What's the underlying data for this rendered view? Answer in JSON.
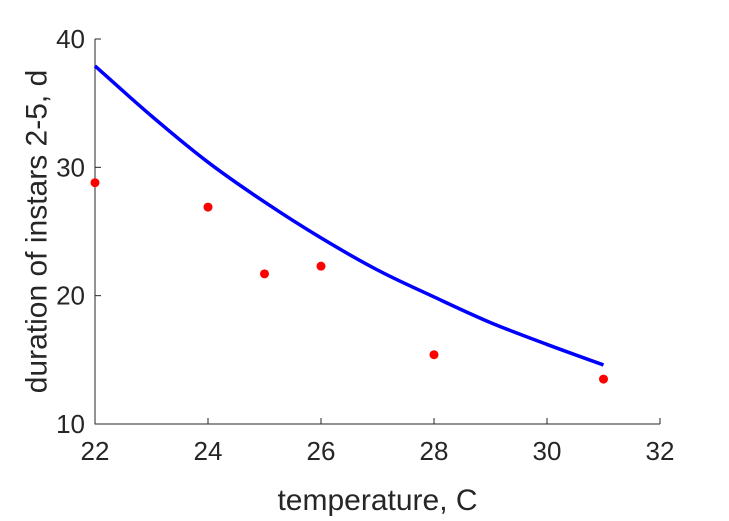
{
  "chart_data": {
    "type": "scatter",
    "title": "",
    "xlabel": "temperature, C",
    "ylabel": "duration of instars 2-5, d",
    "xlim": [
      22,
      32
    ],
    "ylim": [
      10,
      40
    ],
    "xticks": [
      22,
      24,
      26,
      28,
      30,
      32
    ],
    "yticks": [
      10,
      20,
      30,
      40
    ],
    "xtick_labels": [
      "22",
      "24",
      "26",
      "28",
      "30",
      "32"
    ],
    "ytick_labels": [
      "10",
      "20",
      "30",
      "40"
    ],
    "grid": false,
    "legend": false,
    "series": [
      {
        "kind": "line",
        "color": "#0000ff",
        "x": [
          22.0,
          23.0,
          24.0,
          25.0,
          26.0,
          27.0,
          28.0,
          29.0,
          30.0,
          31.0
        ],
        "y": [
          37.9,
          34.0,
          30.4,
          27.3,
          24.5,
          22.0,
          19.9,
          17.9,
          16.2,
          14.6
        ]
      },
      {
        "kind": "scatter",
        "color": "#ff0000",
        "x": [
          22,
          24,
          25,
          26,
          28,
          31
        ],
        "y": [
          28.8,
          26.9,
          21.7,
          22.3,
          15.4,
          13.5
        ]
      }
    ]
  }
}
